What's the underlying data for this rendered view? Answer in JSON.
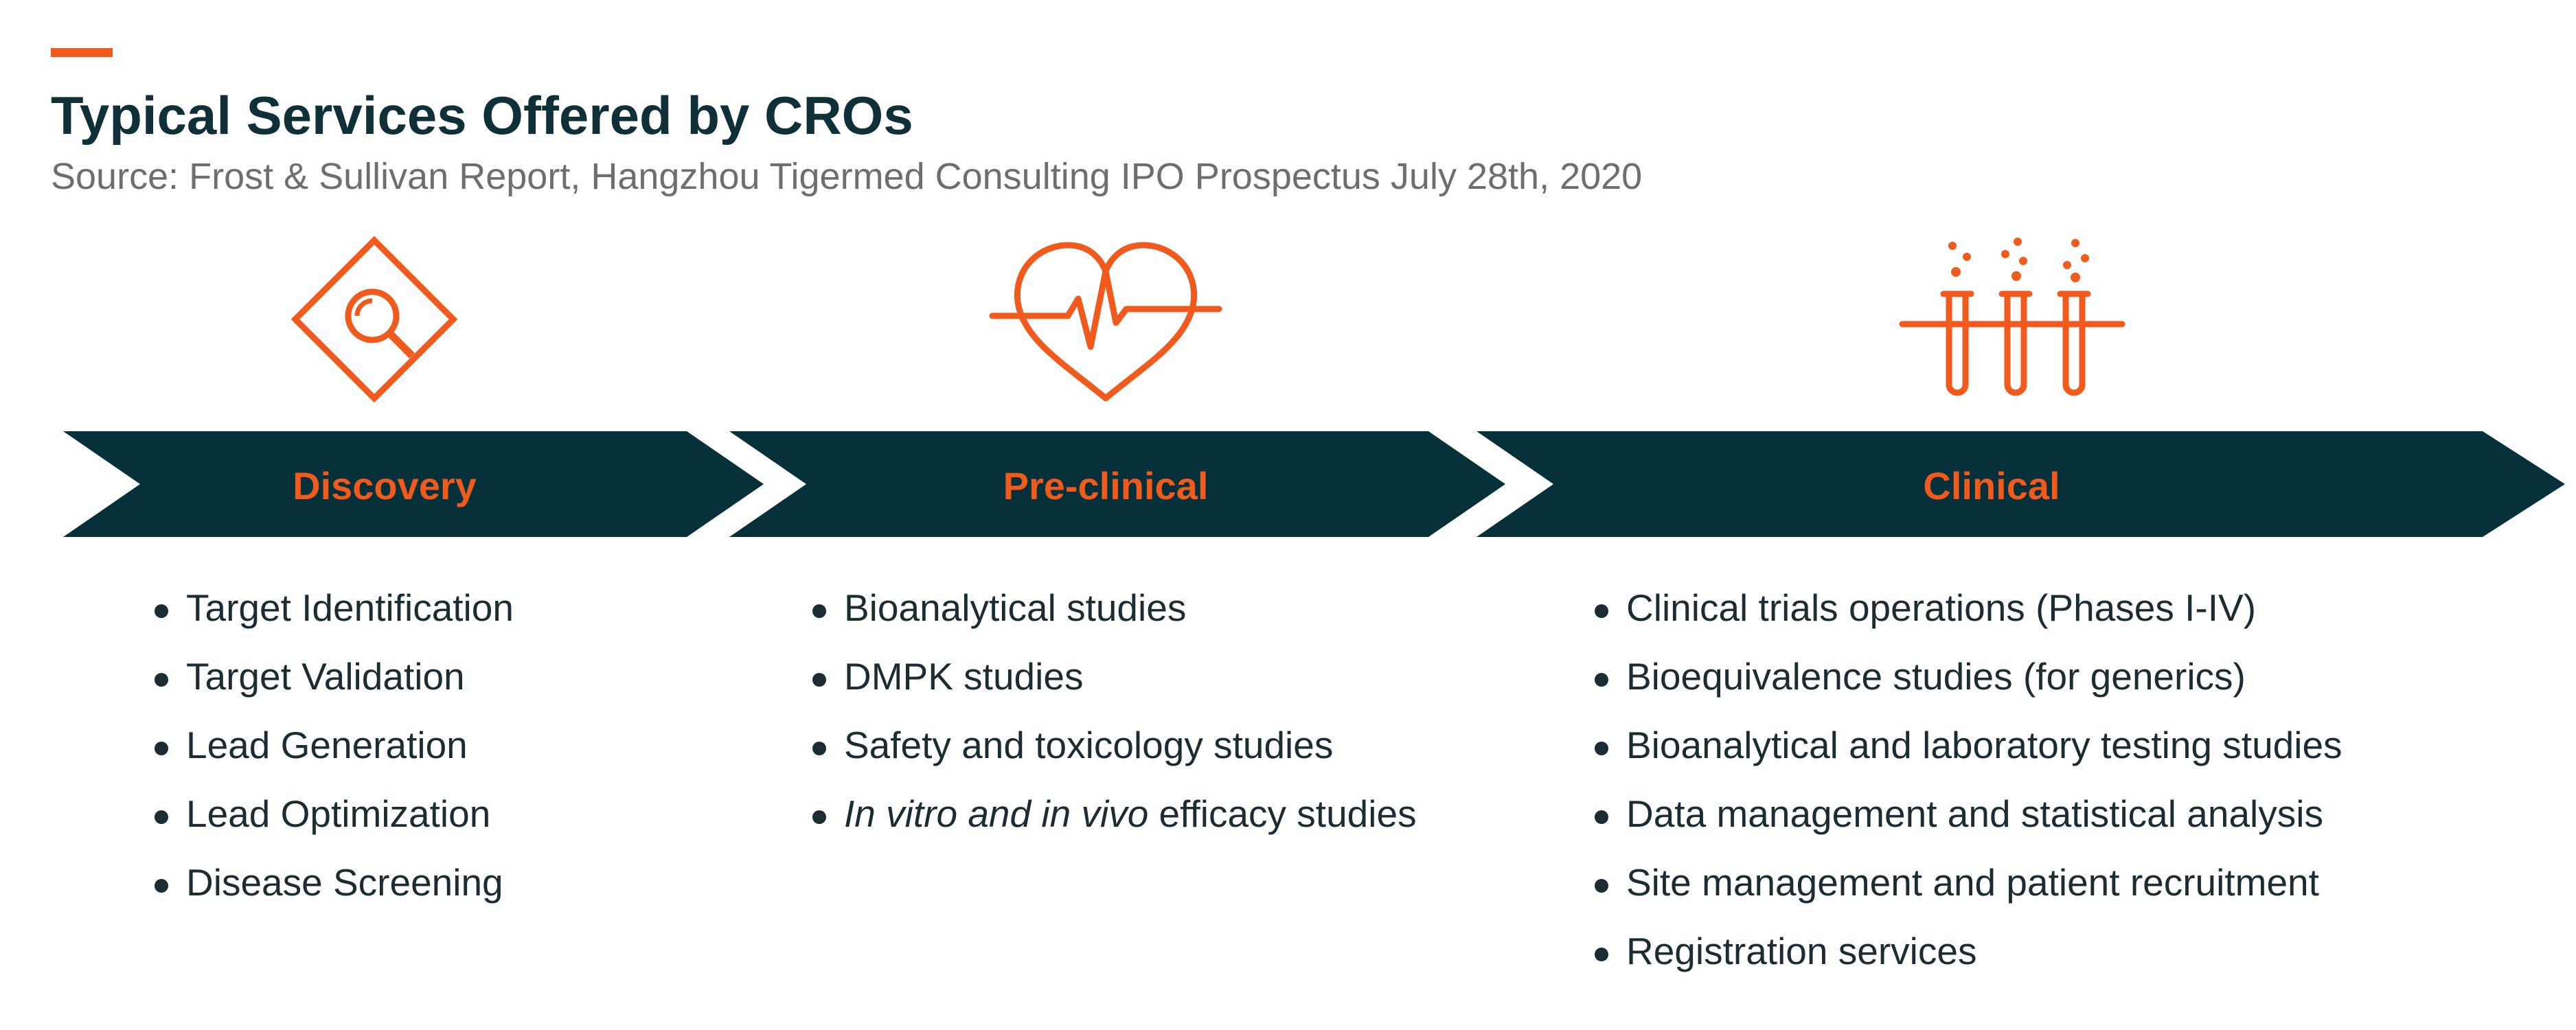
{
  "header": {
    "title": "Typical Services Offered by CROs",
    "subtitle": "Source: Frost & Sullivan Report, Hangzhou Tigermed Consulting IPO Prospectus July 28th, 2020"
  },
  "colors": {
    "accent": "#F05A1C",
    "chevron": "#07313A",
    "text": "#1B2D33",
    "subtitle": "#6E6E6E"
  },
  "stages": [
    {
      "label": "Discovery",
      "icon": "magnifier-diamond-icon",
      "items": [
        {
          "text": "Target Identification"
        },
        {
          "text": "Target Validation"
        },
        {
          "text": "Lead Generation"
        },
        {
          "text": "Lead Optimization"
        },
        {
          "text": "Disease Screening"
        }
      ]
    },
    {
      "label": "Pre-clinical",
      "icon": "heart-pulse-icon",
      "items": [
        {
          "text": "Bioanalytical studies"
        },
        {
          "text": "DMPK studies"
        },
        {
          "text": "Safety and toxicology studies"
        },
        {
          "em": "In vitro and in vivo",
          "text": " efficacy studies"
        }
      ]
    },
    {
      "label": "Clinical",
      "icon": "test-tubes-icon",
      "items": [
        {
          "text": "Clinical trials operations (Phases I-IV)"
        },
        {
          "text": "Bioequivalence studies (for generics)"
        },
        {
          "text": "Bioanalytical and laboratory testing studies"
        },
        {
          "text": "Data management and statistical analysis"
        },
        {
          "text": "Site management and patient recruitment"
        },
        {
          "text": "Registration services"
        }
      ]
    }
  ]
}
